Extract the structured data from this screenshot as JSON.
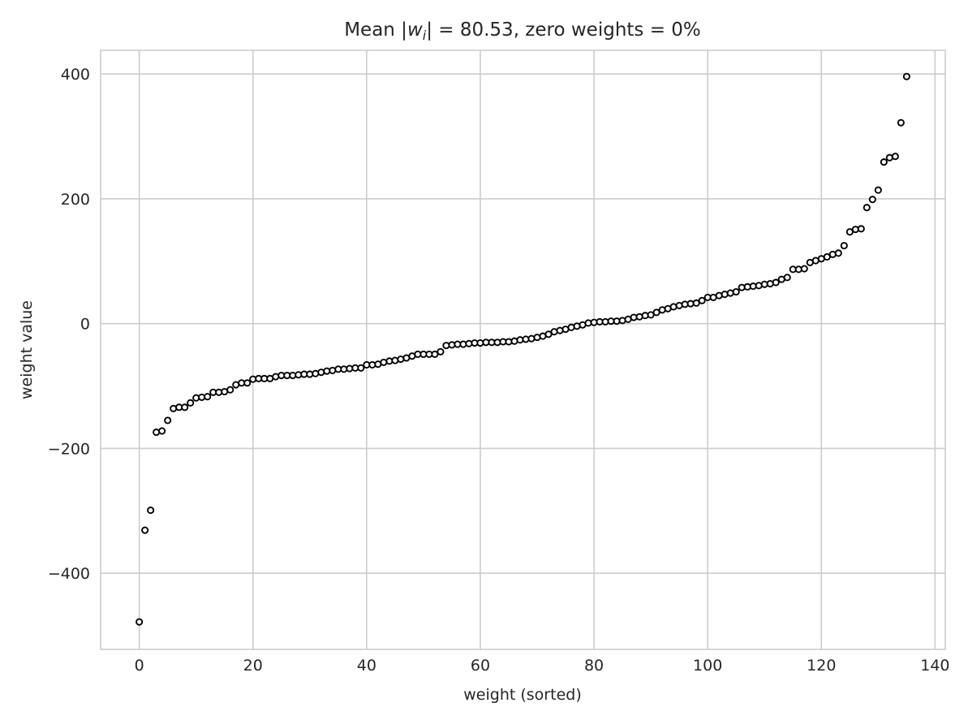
{
  "chart_data": {
    "type": "scatter",
    "title": {
      "prefix": "Mean |",
      "var": "w",
      "sub": "i",
      "suffix": "| = 80.53, zero weights = 0%"
    },
    "xlabel": "weight (sorted)",
    "ylabel": "weight value",
    "xlim": [
      -6.8,
      141.8
    ],
    "ylim": [
      -522,
      438
    ],
    "xticks": [
      0,
      20,
      40,
      60,
      80,
      100,
      120,
      140
    ],
    "yticks": [
      -400,
      -200,
      0,
      200,
      400
    ],
    "xtick_labels": [
      "0",
      "20",
      "40",
      "60",
      "80",
      "100",
      "120",
      "140"
    ],
    "ytick_labels": [
      "−400",
      "−200",
      "0",
      "200",
      "400"
    ],
    "grid": true,
    "colors": {
      "marker_edge": "#000000",
      "marker_face": "#ffffff",
      "grid": "#cccccc",
      "axes_edge": "#cccccc",
      "text": "#262626"
    },
    "series": [
      {
        "x": [
          0,
          1,
          2,
          3,
          4,
          5,
          6,
          7,
          8,
          9,
          10,
          11,
          12,
          13,
          14,
          15,
          16,
          17,
          18,
          19,
          20,
          21,
          22,
          23,
          24,
          25,
          26,
          27,
          28,
          29,
          30,
          31,
          32,
          33,
          34,
          35,
          36,
          37,
          38,
          39,
          40,
          41,
          42,
          43,
          44,
          45,
          46,
          47,
          48,
          49,
          50,
          51,
          52,
          53,
          54,
          55,
          56,
          57,
          58,
          59,
          60,
          61,
          62,
          63,
          64,
          65,
          66,
          67,
          68,
          69,
          70,
          71,
          72,
          73,
          74,
          75,
          76,
          77,
          78,
          79,
          80,
          81,
          82,
          83,
          84,
          85,
          86,
          87,
          88,
          89,
          90,
          91,
          92,
          93,
          94,
          95,
          96,
          97,
          98,
          99,
          100,
          101,
          102,
          103,
          104,
          105,
          106,
          107,
          108,
          109,
          110,
          111,
          112,
          113,
          114,
          115,
          116,
          117,
          118,
          119,
          120,
          121,
          122,
          123,
          124,
          125,
          126,
          127,
          128,
          129,
          130,
          131,
          132,
          133,
          134,
          135
        ],
        "values": [
          -478,
          -331,
          -299,
          -174,
          -172,
          -155,
          -136,
          -134,
          -134,
          -127,
          -119,
          -118,
          -117,
          -110,
          -110,
          -109,
          -106,
          -98,
          -95,
          -95,
          -89,
          -88,
          -88,
          -88,
          -85,
          -83,
          -83,
          -83,
          -82,
          -81,
          -81,
          -80,
          -78,
          -76,
          -75,
          -73,
          -73,
          -72,
          -71,
          -71,
          -66,
          -66,
          -65,
          -62,
          -60,
          -59,
          -57,
          -55,
          -52,
          -49,
          -49,
          -49,
          -49,
          -45,
          -35,
          -34,
          -33,
          -33,
          -32,
          -31,
          -31,
          -30,
          -30,
          -30,
          -29,
          -29,
          -28,
          -26,
          -25,
          -24,
          -22,
          -20,
          -17,
          -13,
          -11,
          -9,
          -6,
          -4,
          -2,
          1,
          2,
          3,
          3,
          4,
          4,
          5,
          7,
          10,
          11,
          13,
          14,
          18,
          22,
          24,
          27,
          29,
          31,
          32,
          33,
          37,
          42,
          42,
          45,
          47,
          49,
          51,
          58,
          59,
          60,
          61,
          63,
          64,
          66,
          71,
          74,
          87,
          87,
          88,
          98,
          101,
          104,
          107,
          111,
          113,
          125,
          147,
          151,
          152,
          186,
          199,
          214,
          259,
          266,
          268,
          322,
          396
        ]
      }
    ]
  }
}
